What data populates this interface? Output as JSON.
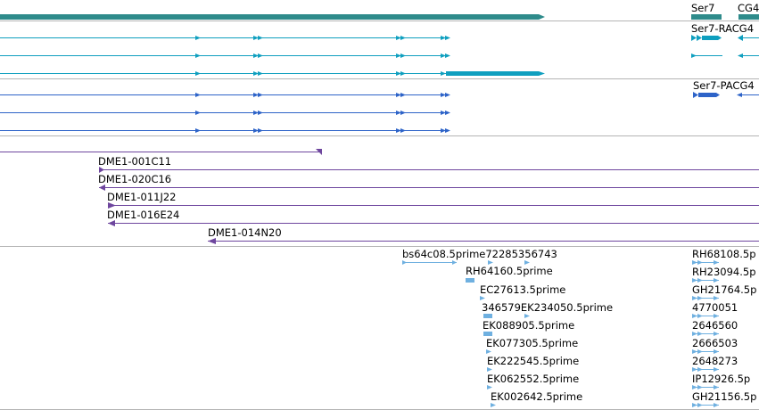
{
  "colors": {
    "gene": "#2e8b8b",
    "mrna": "#0f9fbf",
    "protein": "#2d63c8",
    "bac": "#6e469e",
    "est": "#6fb0e0",
    "separator": "#b4b4b4",
    "label": "#000000"
  },
  "tracks": {
    "gene": {
      "labels": [
        "Ser7",
        "CG4"
      ]
    },
    "mrna": {
      "labels": [
        "Ser7-RACG4"
      ]
    },
    "protein": {
      "labels": [
        "Ser7-PACG4"
      ]
    },
    "bac": {
      "labels": [
        "DME1-001C11",
        "DME1-020C16",
        "DME1-011J22",
        "DME1-016E24",
        "DME1-014N20"
      ]
    },
    "est": {
      "left_labels": [
        "bs64c08.5prime72285356743",
        "RH64160.5prime",
        "EC27613.5prime",
        "346579EK234050.5prime",
        "EK088905.5prime",
        "EK077305.5prime",
        "EK222545.5prime",
        "EK062552.5prime",
        "EK002642.5prime"
      ],
      "right_labels": [
        "RH68108.5p",
        "RH23094.5p",
        "GH21764.5p",
        "4770051",
        "2646560",
        "2666503",
        "2648273",
        "IP12926.5p",
        "GH21156.5p"
      ]
    }
  }
}
